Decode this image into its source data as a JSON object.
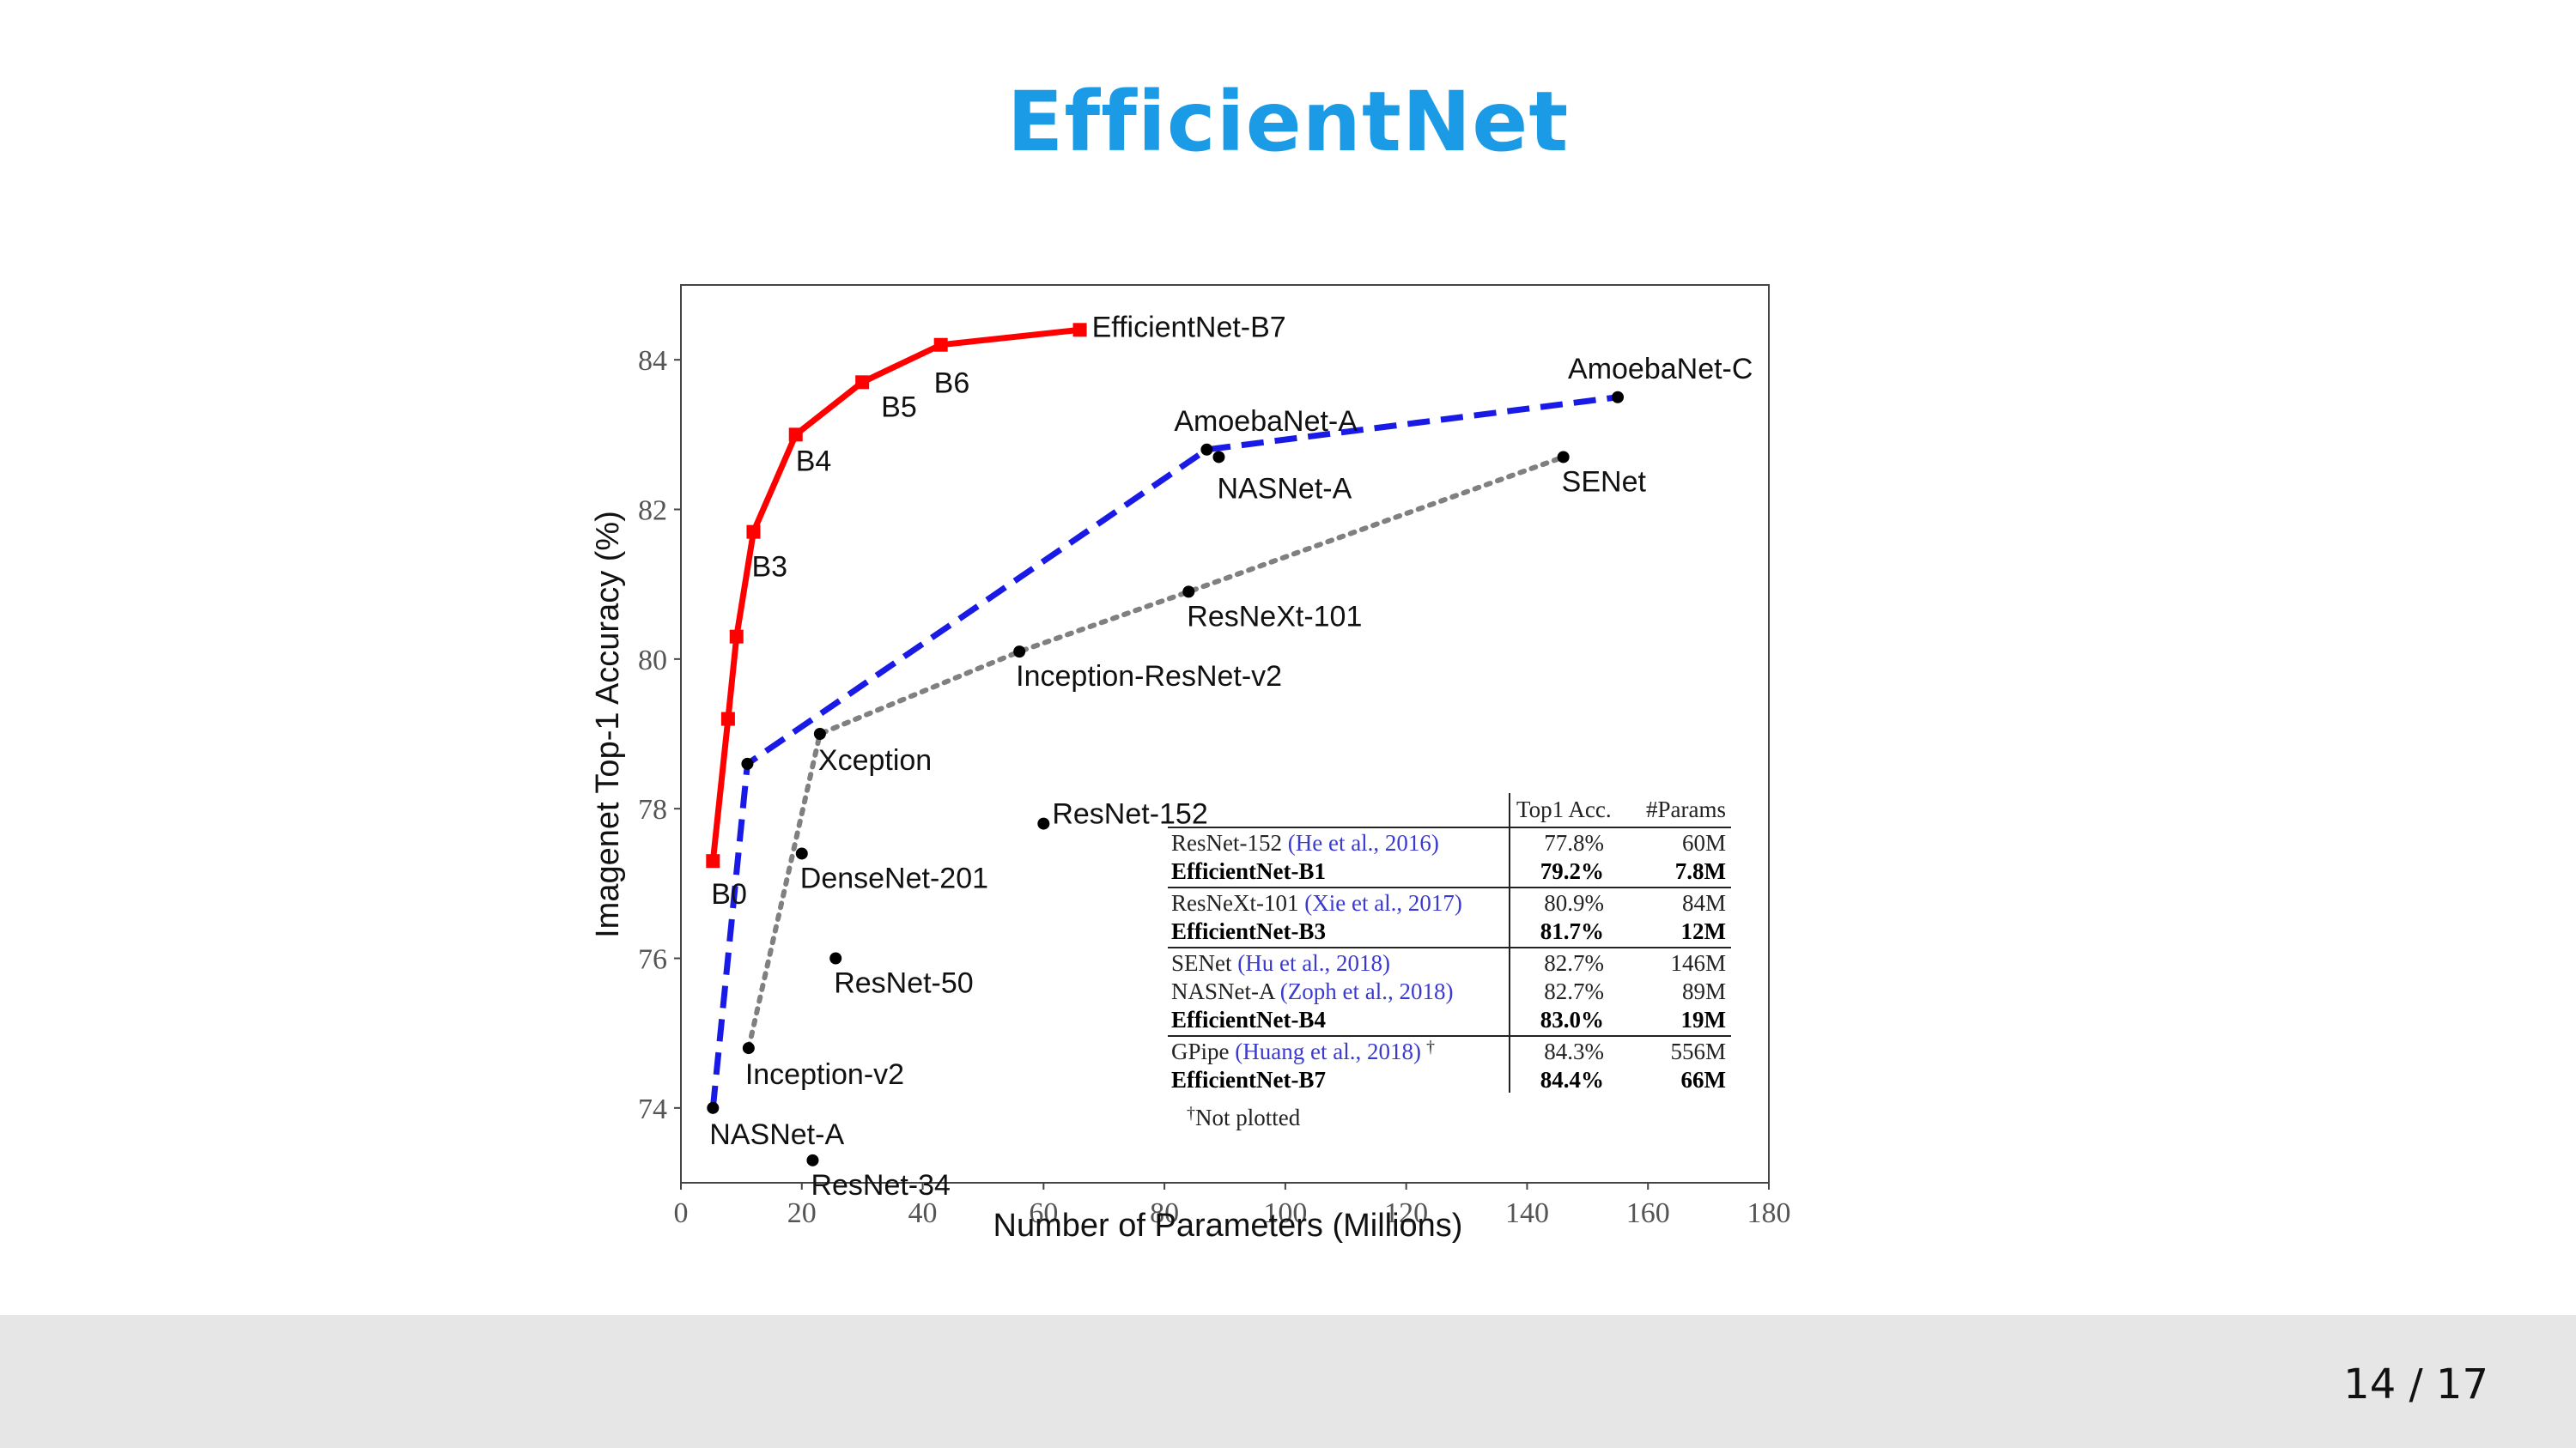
{
  "slide": {
    "title": "EfficientNet",
    "page_number": "14 / 17"
  },
  "colors": {
    "title": "#1b9be6",
    "efficientnet": "#ff0000",
    "pareto": "#1a1ae6",
    "dotted": "#808080",
    "footer": "#e6e6e6"
  },
  "chart_data": {
    "type": "scatter",
    "xlabel": "Number of Parameters (Millions)",
    "ylabel": "Imagenet Top-1 Accuracy (%)",
    "xlim": [
      0,
      180
    ],
    "ylim": [
      73,
      85
    ],
    "xticks": [
      0,
      20,
      40,
      60,
      80,
      100,
      120,
      140,
      160,
      180
    ],
    "yticks": [
      74,
      76,
      78,
      80,
      82,
      84
    ],
    "grid": false,
    "series": [
      {
        "style": "solid-square",
        "color": "#ff0000",
        "points": [
          {
            "x": 5.3,
            "y": 77.3,
            "label": "B0"
          },
          {
            "x": 7.8,
            "y": 79.2,
            "label": ""
          },
          {
            "x": 9.2,
            "y": 80.3,
            "label": ""
          },
          {
            "x": 12,
            "y": 81.7,
            "label": "B3"
          },
          {
            "x": 19,
            "y": 83.0,
            "label": "B4"
          },
          {
            "x": 30,
            "y": 83.7,
            "label": "B5"
          },
          {
            "x": 43,
            "y": 84.2,
            "label": "B6"
          },
          {
            "x": 66,
            "y": 84.4,
            "label": "EfficientNet-B7"
          }
        ]
      },
      {
        "style": "dashed",
        "color": "#1a1ae6",
        "points": [
          {
            "x": 5.3,
            "y": 74.0,
            "label": "NASNet-A"
          },
          {
            "x": 11,
            "y": 78.6,
            "label": ""
          },
          {
            "x": 87,
            "y": 82.8,
            "label": "AmoebaNet-A"
          },
          {
            "x": 155,
            "y": 83.5,
            "label": "AmoebaNet-C"
          }
        ]
      },
      {
        "style": "dotted",
        "color": "#808080",
        "points": [
          {
            "x": 11.2,
            "y": 74.8,
            "label": "Inception-v2"
          },
          {
            "x": 23,
            "y": 79.0,
            "label": "Xception"
          },
          {
            "x": 56,
            "y": 80.1,
            "label": "Inception-ResNet-v2"
          },
          {
            "x": 84,
            "y": 80.9,
            "label": "ResNeXt-101"
          },
          {
            "x": 146,
            "y": 82.7,
            "label": "SENet"
          }
        ]
      },
      {
        "style": "points",
        "color": "#000000",
        "points": [
          {
            "x": 20,
            "y": 77.4,
            "label": "DenseNet-201"
          },
          {
            "x": 25.6,
            "y": 76.0,
            "label": "ResNet-50"
          },
          {
            "x": 21.8,
            "y": 73.3,
            "label": "ResNet-34"
          },
          {
            "x": 60,
            "y": 77.8,
            "label": "ResNet-152"
          },
          {
            "x": 89,
            "y": 82.7,
            "label": "NASNet-A"
          }
        ]
      }
    ],
    "inset_table": {
      "headers": [
        "Top1 Acc.",
        "#Params"
      ],
      "groups": [
        [
          {
            "name": "ResNet-152",
            "cite": "(He et al., 2016)",
            "acc": "77.8%",
            "params": "60M",
            "bold": false
          },
          {
            "name": "EfficientNet-B1",
            "cite": "",
            "acc": "79.2%",
            "params": "7.8M",
            "bold": true
          }
        ],
        [
          {
            "name": "ResNeXt-101",
            "cite": "(Xie et al., 2017)",
            "acc": "80.9%",
            "params": "84M",
            "bold": false
          },
          {
            "name": "EfficientNet-B3",
            "cite": "",
            "acc": "81.7%",
            "params": "12M",
            "bold": true
          }
        ],
        [
          {
            "name": "SENet",
            "cite": "(Hu et al., 2018)",
            "acc": "82.7%",
            "params": "146M",
            "bold": false
          },
          {
            "name": "NASNet-A",
            "cite": "(Zoph et al., 2018)",
            "acc": "82.7%",
            "params": "89M",
            "bold": false
          },
          {
            "name": "EfficientNet-B4",
            "cite": "",
            "acc": "83.0%",
            "params": "19M",
            "bold": true
          }
        ],
        [
          {
            "name": "GPipe",
            "cite": "(Huang et al., 2018)",
            "mark": "†",
            "acc": "84.3%",
            "params": "556M",
            "bold": false
          },
          {
            "name": "EfficientNet-B7",
            "cite": "",
            "acc": "84.4%",
            "params": "66M",
            "bold": true
          }
        ]
      ],
      "footnote_mark": "†",
      "footnote": "Not plotted"
    }
  }
}
